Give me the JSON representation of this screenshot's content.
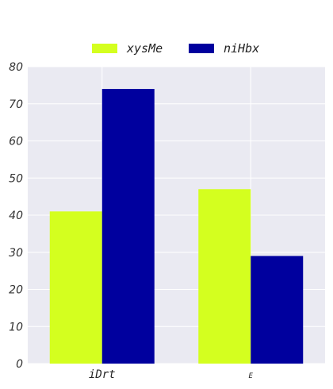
{
  "chart_data": {
    "type": "bar",
    "categories": [
      "iDrt",
      "E"
    ],
    "series": [
      {
        "name": "xysMe",
        "values": [
          41,
          47
        ],
        "color": "#d4ff1f"
      },
      {
        "name": "niHbx",
        "values": [
          74,
          29
        ],
        "color": "#00009e"
      }
    ],
    "ylim": [
      0,
      80
    ],
    "yticks": [
      0,
      10,
      20,
      30,
      40,
      50,
      60,
      70,
      80
    ],
    "grid": true,
    "legend_position": "top-center",
    "plot_background": "#eaeaf2"
  }
}
